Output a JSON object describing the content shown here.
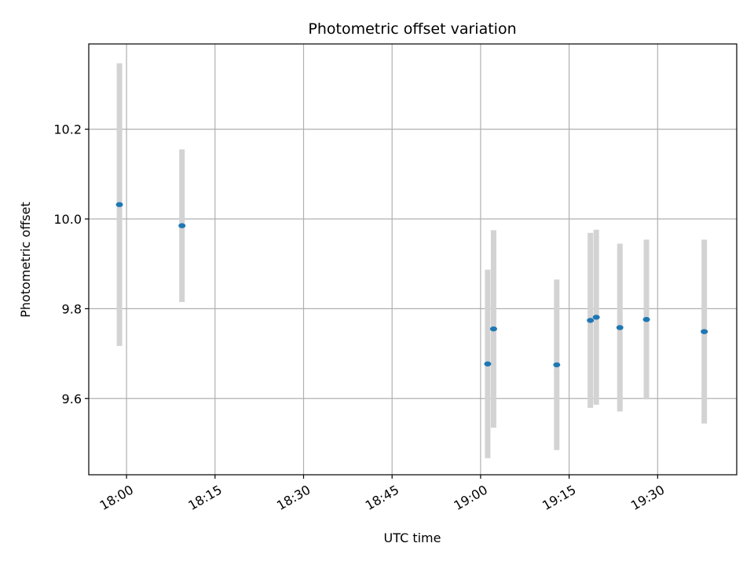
{
  "chart_data": {
    "type": "scatter",
    "title": "Photometric offset variation",
    "xlabel": "UTC time",
    "ylabel": "Photometric offset",
    "x_ticks": [
      "18:00",
      "18:15",
      "18:30",
      "18:45",
      "19:00",
      "19:15",
      "19:30"
    ],
    "y_ticks": [
      "9.6",
      "9.8",
      "10.0",
      "10.2"
    ],
    "xlim": [
      "17:53:36",
      "19:43:24"
    ],
    "ylim": [
      9.43,
      10.39
    ],
    "grid": true,
    "colors": {
      "point": "#1f77b4",
      "errorbar": "#d3d3d3",
      "grid": "#b0b0b0"
    },
    "series": [
      {
        "points": [
          {
            "x": "17:58:48",
            "y": 10.032,
            "err": 0.315
          },
          {
            "x": "18:09:24",
            "y": 9.985,
            "err": 0.17
          },
          {
            "x": "19:01:12",
            "y": 9.677,
            "err": 0.21
          },
          {
            "x": "19:02:12",
            "y": 9.755,
            "err": 0.22
          },
          {
            "x": "19:12:54",
            "y": 9.675,
            "err": 0.19
          },
          {
            "x": "19:18:36",
            "y": 9.774,
            "err": 0.195
          },
          {
            "x": "19:19:36",
            "y": 9.781,
            "err": 0.195
          },
          {
            "x": "19:23:36",
            "y": 9.758,
            "err": 0.187
          },
          {
            "x": "19:28:06",
            "y": 9.776,
            "err": 0.178
          },
          {
            "x": "19:37:54",
            "y": 9.749,
            "err": 0.205
          }
        ]
      }
    ]
  }
}
